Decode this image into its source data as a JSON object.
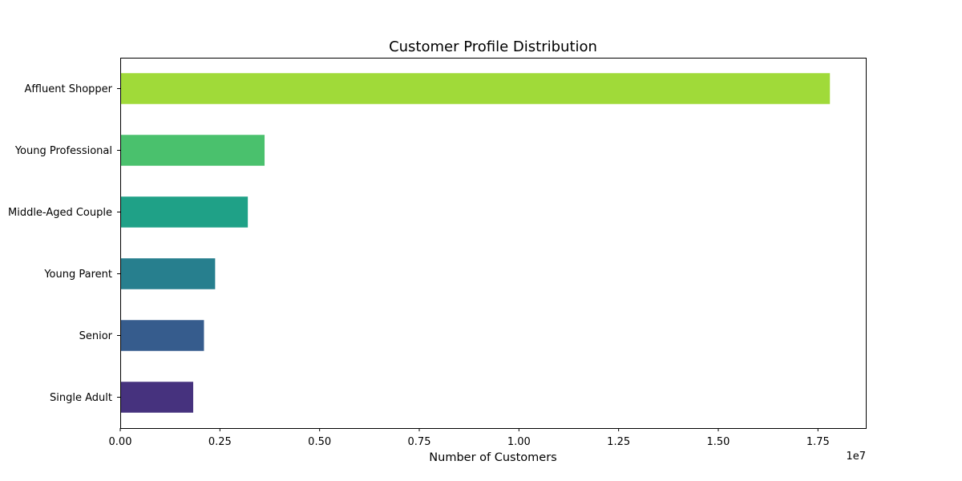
{
  "chart_data": {
    "type": "bar",
    "orientation": "horizontal",
    "title": "Customer Profile Distribution",
    "xlabel": "Number of Customers",
    "ylabel": "",
    "x_offset_label": "1e7",
    "xlim": [
      0,
      18700000
    ],
    "xticks": [
      0,
      2500000,
      5000000,
      7500000,
      10000000,
      12500000,
      15000000,
      17500000
    ],
    "xtick_labels": [
      "0.00",
      "0.25",
      "0.50",
      "0.75",
      "1.00",
      "1.25",
      "1.50",
      "1.75"
    ],
    "categories": [
      "Affluent Shopper",
      "Young Professional",
      "Middle-Aged Couple",
      "Young Parent",
      "Senior",
      "Single Adult"
    ],
    "values": [
      17800000,
      3620000,
      3200000,
      2380000,
      2100000,
      1830000
    ],
    "colors": [
      "#a0da39",
      "#4ac16d",
      "#1fa187",
      "#277f8e",
      "#365c8d",
      "#46327e"
    ],
    "grid": false,
    "legend": "none"
  }
}
